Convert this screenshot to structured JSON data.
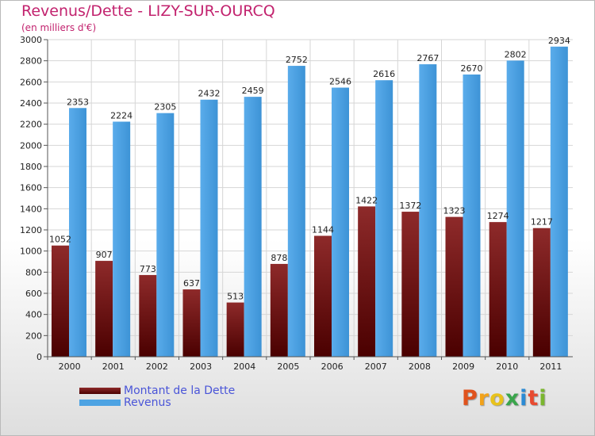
{
  "title": "Revenus/Dette - LIZY-SUR-OURCQ",
  "subtitle": "(en milliers d'€)",
  "logo": {
    "text": "Proxiti",
    "letter_colors": [
      "#e0531d",
      "#f2a21a",
      "#e8c21b",
      "#3aa54c",
      "#2b8ad4",
      "#e84a30",
      "#7ab62f"
    ]
  },
  "chart_data": {
    "type": "bar",
    "title": "Revenus/Dette - LIZY-SUR-OURCQ",
    "subtitle": "(en milliers d'€)",
    "categories": [
      "2000",
      "2001",
      "2002",
      "2003",
      "2004",
      "2005",
      "2006",
      "2007",
      "2008",
      "2009",
      "2010",
      "2011"
    ],
    "series": [
      {
        "name": "Montant de la Dette",
        "color": "#7a1a1a",
        "values": [
          1052,
          907,
          773,
          637,
          513,
          878,
          1144,
          1422,
          1372,
          1323,
          1274,
          1217
        ]
      },
      {
        "name": "Revenus",
        "color": "#4da3e3",
        "values": [
          2353,
          2224,
          2305,
          2432,
          2459,
          2752,
          2546,
          2616,
          2767,
          2670,
          2802,
          2934
        ]
      }
    ],
    "ylim": [
      0,
      3000
    ],
    "yticks": [
      0,
      200,
      400,
      600,
      800,
      1000,
      1200,
      1400,
      1600,
      1800,
      2000,
      2200,
      2400,
      2600,
      2800,
      3000
    ],
    "grid": true,
    "legend_position": "bottom-left"
  }
}
